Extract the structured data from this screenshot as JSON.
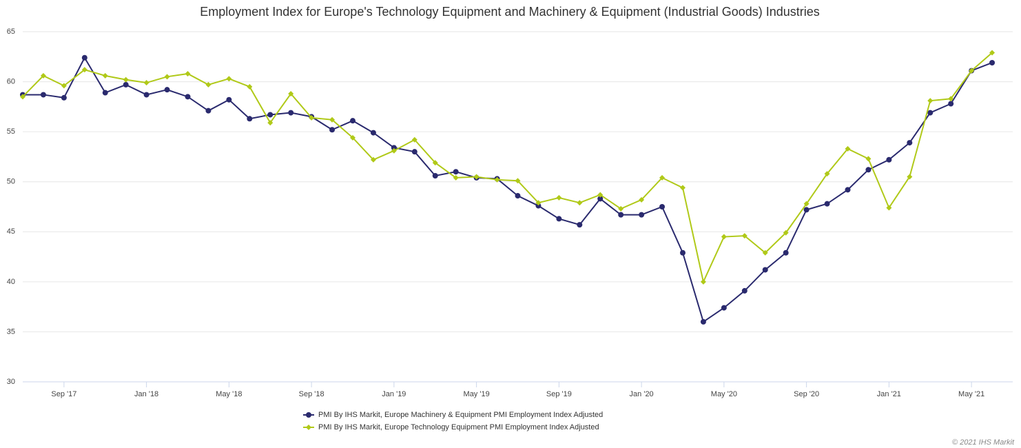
{
  "chart_data": {
    "type": "line",
    "title": "Employment Index for Europe's Technology Equipment and Machinery & Equipment (Industrial Goods) Industries",
    "credit": "© 2021 IHS Markit",
    "x": [
      "2017-07",
      "2017-08",
      "2017-09",
      "2017-10",
      "2017-11",
      "2017-12",
      "2018-01",
      "2018-02",
      "2018-03",
      "2018-04",
      "2018-05",
      "2018-06",
      "2018-07",
      "2018-08",
      "2018-09",
      "2018-10",
      "2018-11",
      "2018-12",
      "2019-01",
      "2019-02",
      "2019-03",
      "2019-04",
      "2019-05",
      "2019-06",
      "2019-07",
      "2019-08",
      "2019-09",
      "2019-10",
      "2019-11",
      "2019-12",
      "2020-01",
      "2020-02",
      "2020-03",
      "2020-04",
      "2020-05",
      "2020-06",
      "2020-07",
      "2020-08",
      "2020-09",
      "2020-10",
      "2020-11",
      "2020-12",
      "2021-01",
      "2021-02",
      "2021-03",
      "2021-04",
      "2021-05",
      "2021-06"
    ],
    "series": [
      {
        "name": "PMI By IHS Markit, Europe Machinery & Equipment PMI Employment Index Adjusted",
        "color": "#2a2a6e",
        "marker": "circle",
        "values": [
          58.7,
          58.7,
          58.4,
          62.4,
          58.9,
          59.7,
          58.7,
          59.2,
          58.5,
          57.1,
          58.2,
          56.3,
          56.7,
          56.9,
          56.5,
          55.2,
          56.1,
          54.9,
          53.4,
          53.0,
          50.6,
          51.0,
          50.4,
          50.3,
          48.6,
          47.6,
          46.3,
          45.7,
          48.3,
          46.7,
          46.7,
          47.5,
          42.9,
          36.0,
          37.4,
          39.1,
          41.2,
          42.9,
          47.2,
          47.8,
          49.2,
          51.2,
          52.2,
          53.9,
          56.9,
          57.8,
          61.1,
          61.9
        ]
      },
      {
        "name": "PMI By IHS Markit, Europe Technology Equipment PMI Employment Index Adjusted",
        "color": "#b0c918",
        "marker": "diamond",
        "values": [
          58.5,
          60.6,
          59.6,
          61.2,
          60.6,
          60.2,
          59.9,
          60.5,
          60.8,
          59.7,
          60.3,
          59.5,
          55.9,
          58.8,
          56.4,
          56.2,
          54.4,
          52.2,
          53.1,
          54.2,
          51.9,
          50.4,
          50.5,
          50.2,
          50.1,
          47.9,
          48.4,
          47.9,
          48.7,
          47.3,
          48.2,
          50.4,
          49.4,
          40.0,
          44.5,
          44.6,
          42.9,
          44.9,
          47.8,
          50.8,
          53.3,
          52.3,
          47.4,
          50.5,
          58.1,
          58.3,
          61.1,
          62.9
        ]
      }
    ],
    "xlim": [
      "2017-07",
      "2021-07"
    ],
    "xticks": [
      {
        "value": "2017-09",
        "label": "Sep '17"
      },
      {
        "value": "2018-01",
        "label": "Jan '18"
      },
      {
        "value": "2018-05",
        "label": "May '18"
      },
      {
        "value": "2018-09",
        "label": "Sep '18"
      },
      {
        "value": "2019-01",
        "label": "Jan '19"
      },
      {
        "value": "2019-05",
        "label": "May '19"
      },
      {
        "value": "2019-09",
        "label": "Sep '19"
      },
      {
        "value": "2020-01",
        "label": "Jan '20"
      },
      {
        "value": "2020-05",
        "label": "May '20"
      },
      {
        "value": "2020-09",
        "label": "Sep '20"
      },
      {
        "value": "2021-01",
        "label": "Jan '21"
      },
      {
        "value": "2021-05",
        "label": "May '21"
      }
    ],
    "ylim": [
      30,
      65
    ],
    "yticks": [
      30,
      35,
      40,
      45,
      50,
      55,
      60,
      65
    ],
    "grid": true,
    "legend": "bottom"
  }
}
